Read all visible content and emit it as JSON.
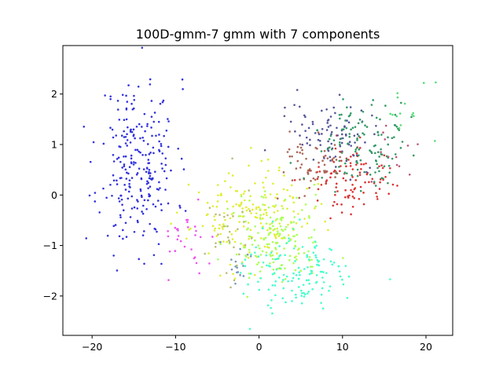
{
  "chart_data": {
    "type": "scatter",
    "title": "100D-gmm-7 gmm with 7 components",
    "xlabel": "",
    "ylabel": "",
    "xlim": [
      -23.5,
      23.2
    ],
    "ylim": [
      -2.78,
      2.96
    ],
    "xticks": [
      -20,
      -10,
      0,
      10,
      20
    ],
    "xtick_labels": [
      "−20",
      "−10",
      "0",
      "10",
      "20"
    ],
    "yticks": [
      -2,
      -1,
      0,
      1,
      2
    ],
    "ytick_labels": [
      "−2",
      "−1",
      "0",
      "1",
      "2"
    ],
    "grid": false,
    "legend": "none",
    "clusters": [
      {
        "color": "#3333dd",
        "cx": -14.5,
        "cy": 0.6,
        "sx": 2.3,
        "sy": 0.85,
        "n": 250,
        "seed": 11
      },
      {
        "color": "#e0ee33",
        "cx": -0.8,
        "cy": -0.45,
        "sx": 3.6,
        "sy": 0.45,
        "n": 180,
        "seed": 23
      },
      {
        "color": "#aaff55",
        "cx": 1.8,
        "cy": -0.9,
        "sx": 3.0,
        "sy": 0.45,
        "n": 150,
        "seed": 31
      },
      {
        "color": "#44ffcc",
        "cx": 4.5,
        "cy": -1.55,
        "sx": 3.5,
        "sy": 0.35,
        "n": 140,
        "seed": 47
      },
      {
        "color": "#ee55ee",
        "cx": -8.5,
        "cy": -0.85,
        "sx": 1.8,
        "sy": 0.35,
        "n": 30,
        "seed": 53
      },
      {
        "color": "#bbbb77",
        "cx": -3.5,
        "cy": -0.8,
        "sx": 1.5,
        "sy": 0.4,
        "n": 30,
        "seed": 59
      },
      {
        "color": "#7799bb",
        "cx": -3.0,
        "cy": -1.3,
        "sx": 1.2,
        "sy": 0.25,
        "n": 15,
        "seed": 61
      },
      {
        "color": "#dd3333",
        "cx": 11.0,
        "cy": 0.25,
        "sx": 2.3,
        "sy": 0.35,
        "n": 100,
        "seed": 67
      },
      {
        "color": "#aa6655",
        "cx": 6.5,
        "cy": 0.55,
        "sx": 2.0,
        "sy": 0.3,
        "n": 60,
        "seed": 71
      },
      {
        "color": "#555599",
        "cx": 9.0,
        "cy": 1.2,
        "sx": 2.8,
        "sy": 0.35,
        "n": 90,
        "seed": 73
      },
      {
        "color": "#339966",
        "cx": 12.5,
        "cy": 1.05,
        "sx": 2.8,
        "sy": 0.4,
        "n": 120,
        "seed": 79
      },
      {
        "color": "#55dd77",
        "cx": 17.5,
        "cy": 1.6,
        "sx": 1.5,
        "sy": 0.25,
        "n": 15,
        "seed": 83
      },
      {
        "color": "#bb5577",
        "cx": 17.0,
        "cy": 0.85,
        "sx": 2.0,
        "sy": 0.35,
        "n": 12,
        "seed": 89
      }
    ]
  }
}
